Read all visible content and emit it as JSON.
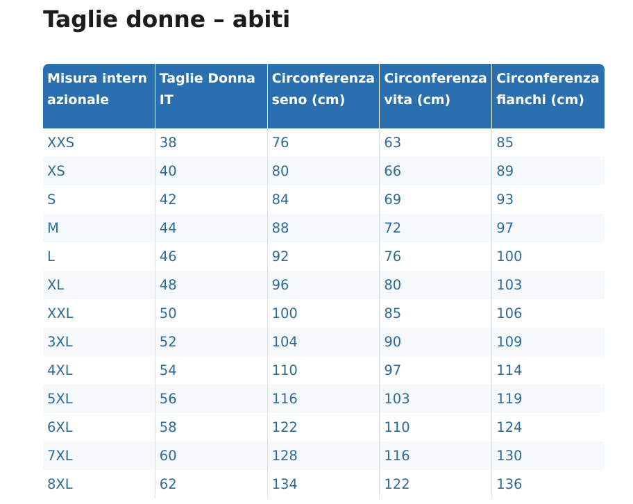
{
  "title": "Taglie donne – abiti",
  "table": {
    "headers": [
      "Misura internazionale",
      "Taglie Donna IT",
      "Circonferenza seno (cm)",
      "Circonferenza vita (cm)",
      "Circonferenza fianchi (cm)"
    ],
    "rows": [
      [
        "XXS",
        "38",
        "76",
        "63",
        "85"
      ],
      [
        "XS",
        "40",
        "80",
        "66",
        "89"
      ],
      [
        "S",
        "42",
        "84",
        "69",
        "93"
      ],
      [
        "M",
        "44",
        "88",
        "72",
        "97"
      ],
      [
        "L",
        "46",
        "92",
        "76",
        "100"
      ],
      [
        "XL",
        "48",
        "96",
        "80",
        "103"
      ],
      [
        "XXL",
        "50",
        "100",
        "85",
        "106"
      ],
      [
        "3XL",
        "52",
        "104",
        "90",
        "109"
      ],
      [
        "4XL",
        "54",
        "110",
        "97",
        "114"
      ],
      [
        "5XL",
        "56",
        "116",
        "103",
        "119"
      ],
      [
        "6XL",
        "58",
        "122",
        "110",
        "124"
      ],
      [
        "7XL",
        "60",
        "128",
        "116",
        "130"
      ],
      [
        "8XL",
        "62",
        "134",
        "122",
        "136"
      ]
    ]
  }
}
